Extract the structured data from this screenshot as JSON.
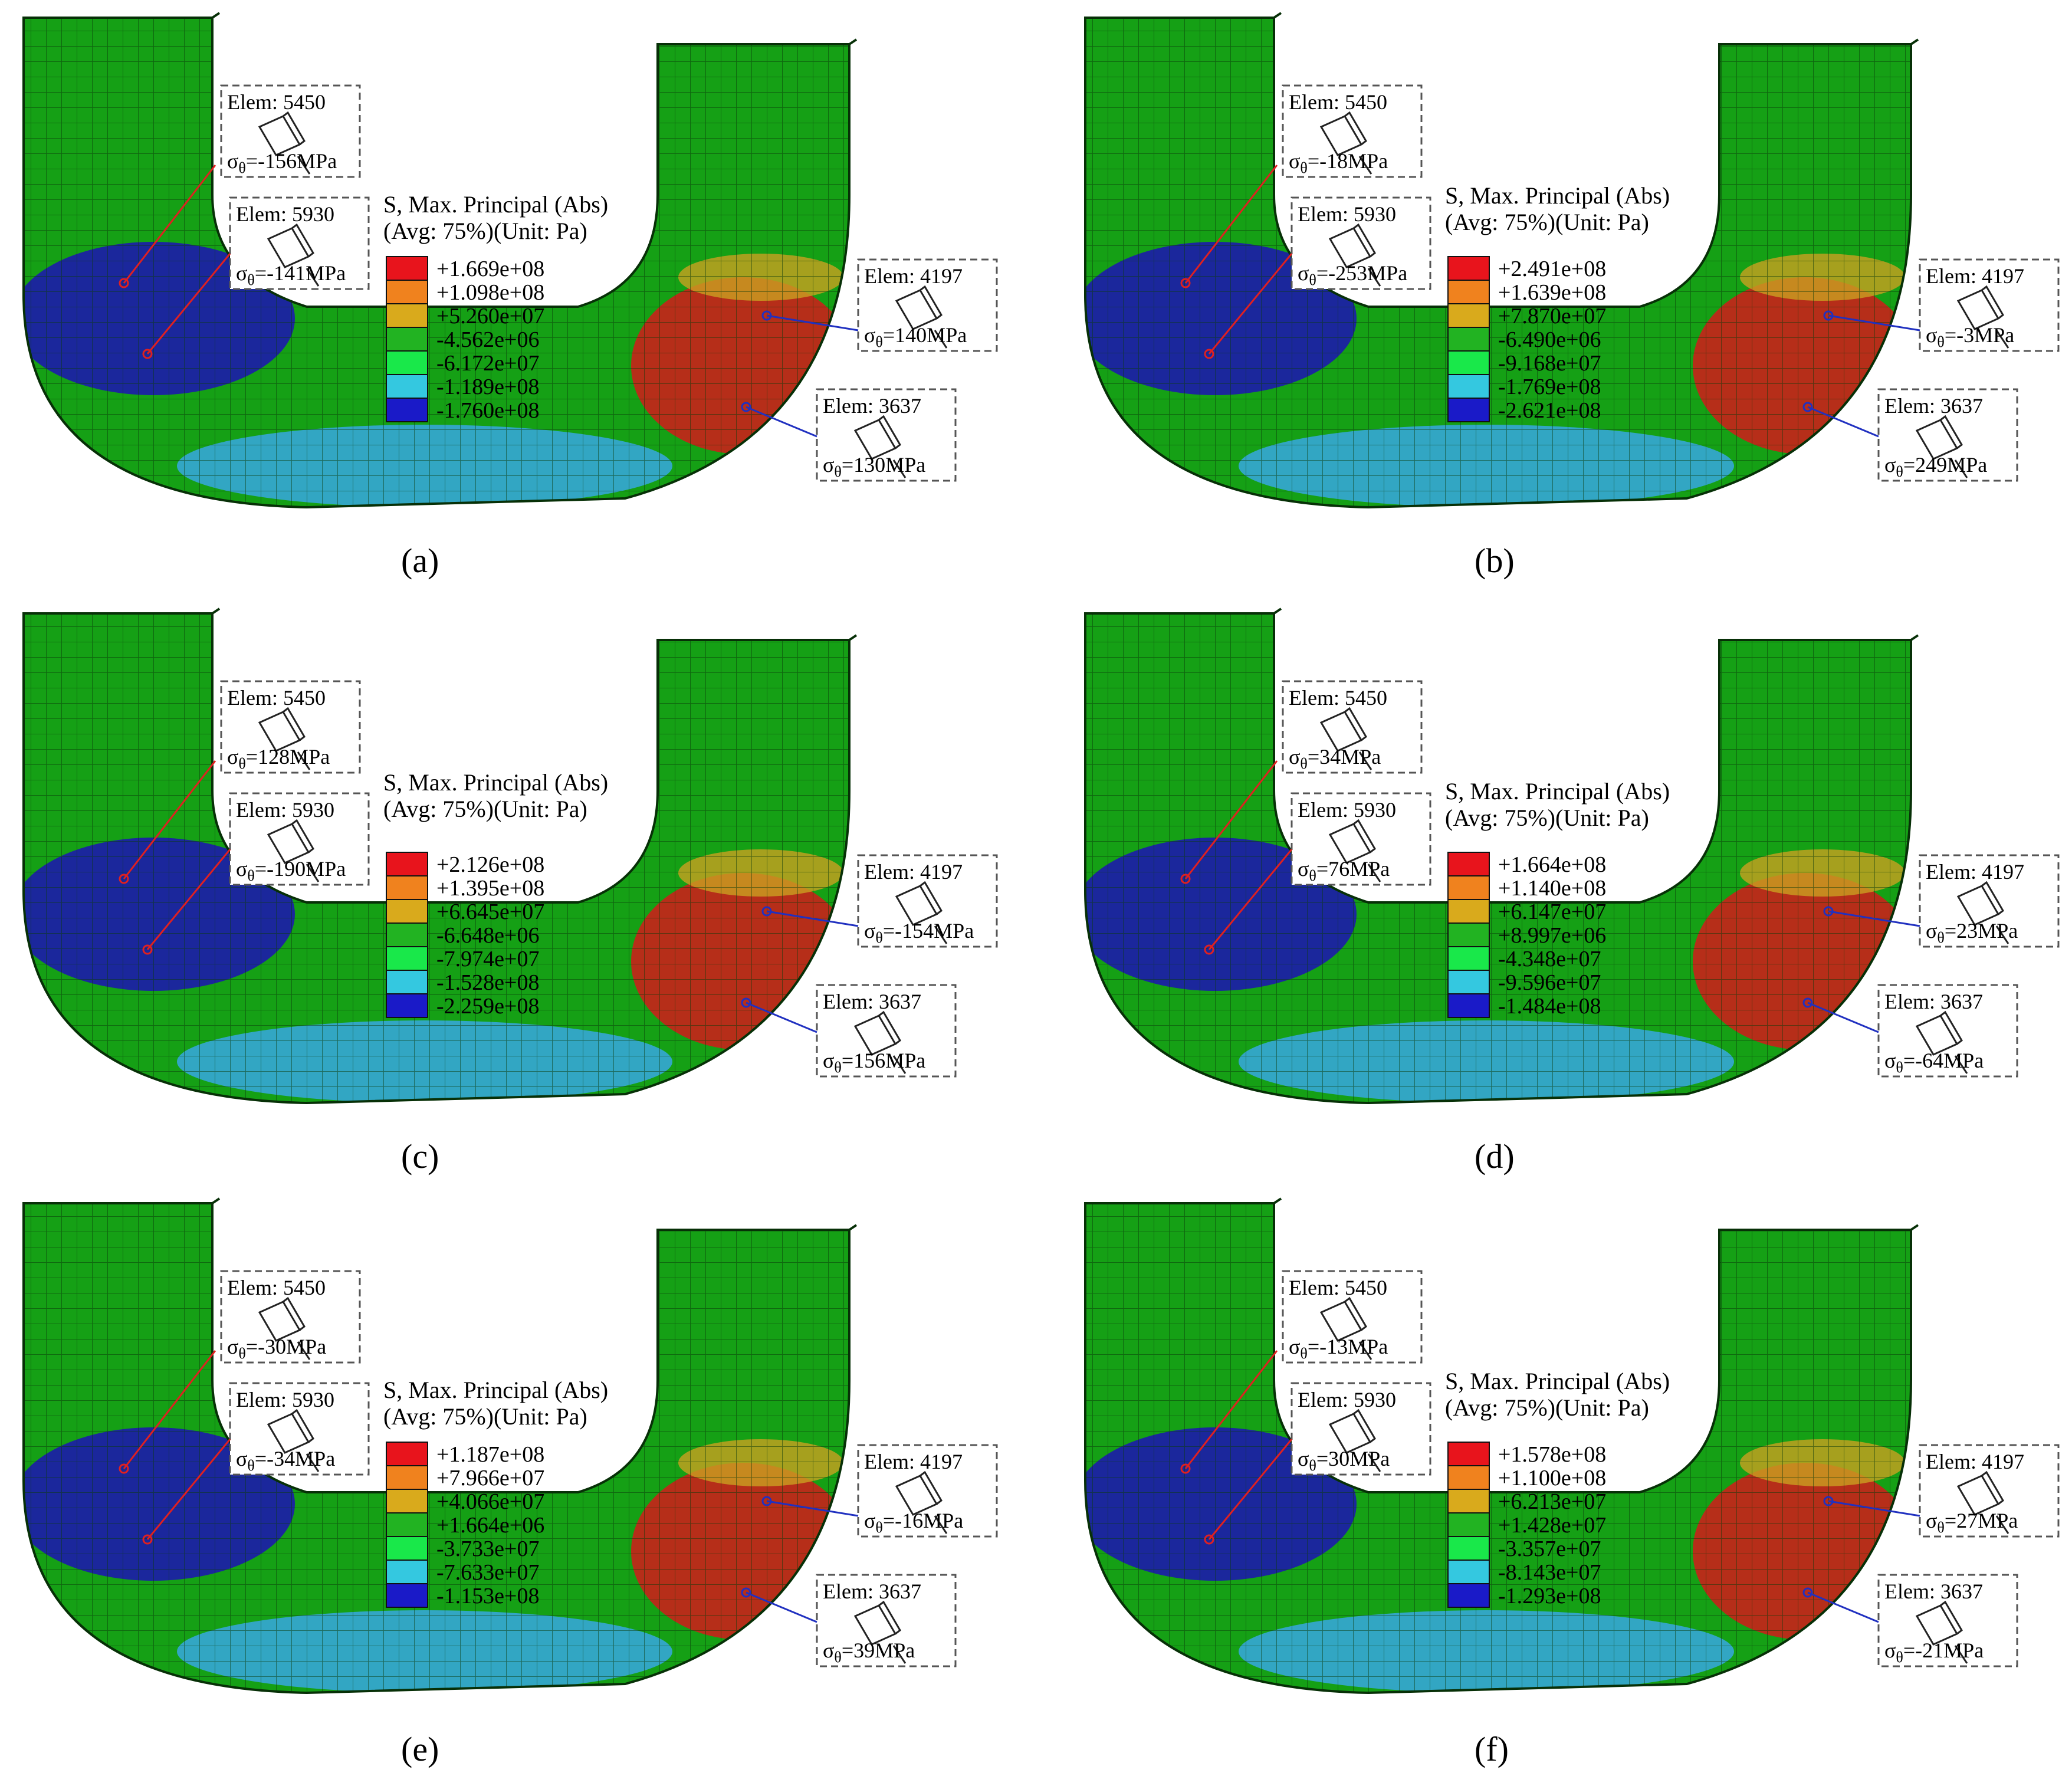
{
  "legend_title": "S, Max. Principal (Abs)",
  "legend_subtitle": "(Avg: 75%)(Unit: Pa)",
  "sigma_symbol": "σ",
  "sigma_sub": "θ",
  "colors": {
    "legend": [
      "#e8141c",
      "#f0821e",
      "#d9aa1c",
      "#22b322",
      "#19e84a",
      "#34c8e0",
      "#2878e8",
      "#1a1ac8"
    ],
    "shell_green": "#15a015",
    "shell_blue": "#1c1ca8",
    "shell_cyan": "#35a6d6",
    "shell_red": "#d21a1a",
    "shell_orange": "#caa020",
    "mesh": "#0a3a0a",
    "red_leader": "#e02020",
    "blue_leader": "#2030c0"
  },
  "panels": [
    {
      "caption": "(a)",
      "legend": [
        "+1.669e+08",
        "+1.098e+08",
        "+5.260e+07",
        "-4.562e+06",
        "-6.172e+07",
        "-1.189e+08",
        "-1.760e+08"
      ],
      "elements": [
        {
          "label": "Elem: 5450",
          "stress": "=-156MPa"
        },
        {
          "label": "Elem: 5930",
          "stress": "=-141MPa"
        },
        {
          "label": "Elem: 4197",
          "stress": "=140MPa"
        },
        {
          "label": "Elem: 3637",
          "stress": "=130MPa"
        }
      ]
    },
    {
      "caption": "(b)",
      "legend": [
        "+2.491e+08",
        "+1.639e+08",
        "+7.870e+07",
        "-6.490e+06",
        "-9.168e+07",
        "-1.769e+08",
        "-2.621e+08"
      ],
      "elements": [
        {
          "label": "Elem: 5450",
          "stress": "=-18MPa"
        },
        {
          "label": "Elem: 5930",
          "stress": "=-253MPa"
        },
        {
          "label": "Elem: 4197",
          "stress": "=-3MPa"
        },
        {
          "label": "Elem: 3637",
          "stress": "=249MPa"
        }
      ]
    },
    {
      "caption": "(c)",
      "legend": [
        "+2.126e+08",
        "+1.395e+08",
        "+6.645e+07",
        "-6.648e+06",
        "-7.974e+07",
        "-1.528e+08",
        "-2.259e+08"
      ],
      "elements": [
        {
          "label": "Elem: 5450",
          "stress": "=128MPa"
        },
        {
          "label": "Elem: 5930",
          "stress": "=-190MPa"
        },
        {
          "label": "Elem: 4197",
          "stress": "=-154MPa"
        },
        {
          "label": "Elem: 3637",
          "stress": "=156MPa"
        }
      ]
    },
    {
      "caption": "(d)",
      "legend": [
        "+1.664e+08",
        "+1.140e+08",
        "+6.147e+07",
        "+8.997e+06",
        "-4.348e+07",
        "-9.596e+07",
        "-1.484e+08"
      ],
      "elements": [
        {
          "label": "Elem: 5450",
          "stress": "=34MPa"
        },
        {
          "label": "Elem: 5930",
          "stress": "=76MPa"
        },
        {
          "label": "Elem: 4197",
          "stress": "=23MPa"
        },
        {
          "label": "Elem: 3637",
          "stress": "=-64MPa"
        }
      ]
    },
    {
      "caption": "(e)",
      "legend": [
        "+1.187e+08",
        "+7.966e+07",
        "+4.066e+07",
        "+1.664e+06",
        "-3.733e+07",
        "-7.633e+07",
        "-1.153e+08"
      ],
      "elements": [
        {
          "label": "Elem: 5450",
          "stress": "=-30MPa"
        },
        {
          "label": "Elem: 5930",
          "stress": "=-34MPa"
        },
        {
          "label": "Elem: 4197",
          "stress": "=-16MPa"
        },
        {
          "label": "Elem: 3637",
          "stress": "=39MPa"
        }
      ]
    },
    {
      "caption": "(f)",
      "legend": [
        "+1.578e+08",
        "+1.100e+08",
        "+6.213e+07",
        "+1.428e+07",
        "-3.357e+07",
        "-8.143e+07",
        "-1.293e+08"
      ],
      "elements": [
        {
          "label": "Elem: 5450",
          "stress": "=-13MPa"
        },
        {
          "label": "Elem: 5930",
          "stress": "=30MPa"
        },
        {
          "label": "Elem: 4197",
          "stress": "=27MPa"
        },
        {
          "label": "Elem: 3637",
          "stress": "=-21MPa"
        }
      ]
    }
  ]
}
